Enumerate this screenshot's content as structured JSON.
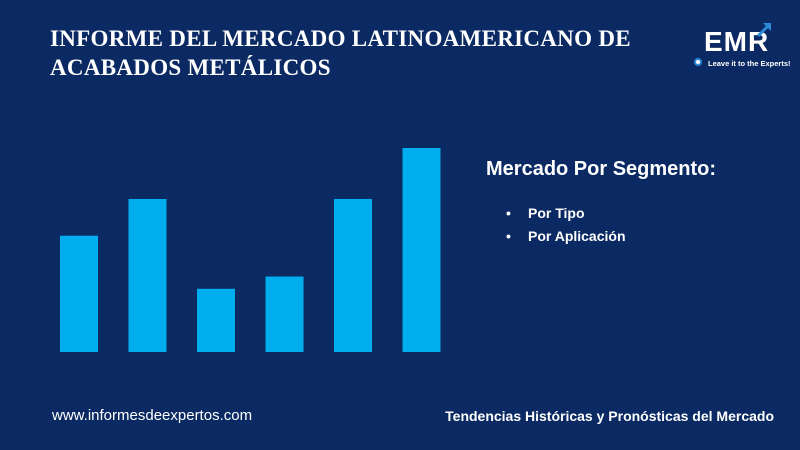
{
  "title": "INFORME DEL MERCADO LATINOAMERICANO DE ACABADOS METÁLICOS",
  "logo": {
    "text": "EMR",
    "tagline": "Leave it to the Experts!",
    "icon": "arrow-up-right-icon"
  },
  "segment": {
    "heading": "Mercado Por Segmento:",
    "items": [
      "Por Tipo",
      "Por Aplicación"
    ]
  },
  "footer": {
    "website": "www.informesdeexpertos.com",
    "tagline": "Tendencias Históricas y Pronósticas del Mercado"
  },
  "colors": {
    "background": "#0b2a63",
    "bar": "#00adef",
    "text": "#ffffff"
  },
  "chart_data": {
    "type": "bar",
    "categories": [
      "",
      "",
      "",
      "",
      "",
      ""
    ],
    "values": [
      57,
      75,
      31,
      37,
      75,
      100
    ],
    "title": "",
    "xlabel": "",
    "ylabel": "",
    "ylim": [
      0,
      100
    ],
    "grid": false,
    "legend": "none"
  }
}
